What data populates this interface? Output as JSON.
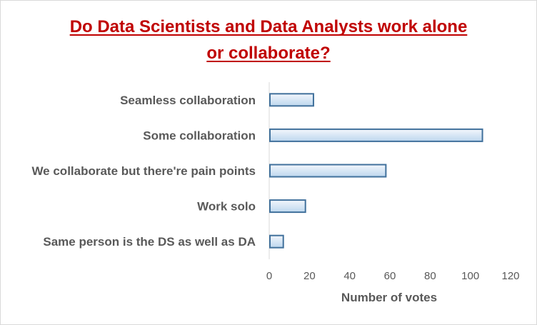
{
  "chart_data": {
    "type": "bar",
    "orientation": "horizontal",
    "title_lines": [
      "Do Data Scientists and Data Analysts work alone",
      "or collaborate?"
    ],
    "categories": [
      "Seamless collaboration",
      "Some collaboration",
      "We collaborate but there're pain points",
      "Work solo",
      "Same person is the DS as well as DA"
    ],
    "values": [
      22,
      106,
      58,
      18,
      7
    ],
    "xlabel": "Number of votes",
    "ylabel": "",
    "xlim": [
      0,
      120
    ],
    "xticks": [
      0,
      20,
      40,
      60,
      80,
      100,
      120
    ],
    "grid": false,
    "legend": "none",
    "colors": {
      "bar_fill_light": "#f2f6fc",
      "bar_fill_dark": "#bdd7ee",
      "bar_stroke": "#41719c",
      "title": "#c00000",
      "text": "#595959",
      "axis": "#d9d9d9"
    }
  }
}
